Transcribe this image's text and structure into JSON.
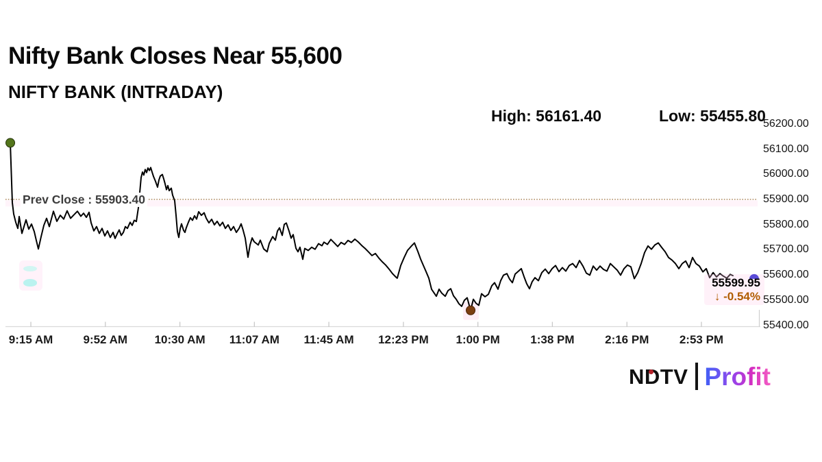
{
  "header": {
    "title": "Nifty Bank Closes Near 55,600",
    "subtitle": "NIFTY BANK (INTRADAY)",
    "high_label": "High:",
    "high_value": "56161.40",
    "low_label": "Low:",
    "low_value": "55455.80"
  },
  "annotations": {
    "prev_close_label": "Prev Close :",
    "prev_close_value": "55903.40",
    "last_price": "55599.95",
    "change_arrow": "↓",
    "change_percent": "-0.54%"
  },
  "branding": {
    "ndtv": "NDTV",
    "divider_bar": "",
    "profit": "Profit"
  },
  "chart_data": {
    "type": "line",
    "title": "Nifty Bank Closes Near 55,600",
    "subtitle": "NIFTY BANK (INTRADAY)",
    "high": 56161.4,
    "low": 55455.8,
    "prev_close": 55903.4,
    "last": 55599.95,
    "change_pct": -0.54,
    "grid": false,
    "legend": "none",
    "colors": {
      "line": "#000000",
      "prev_close_line": "#b3916a",
      "change_text": "#b05c00",
      "open_marker": "#53751b",
      "low_marker": "#7c3e10",
      "close_marker": "#1b1bd0"
    },
    "y_axis": {
      "min": 55400,
      "max": 56200,
      "ticks": [
        {
          "value": 56200,
          "label": "56200.00"
        },
        {
          "value": 56100,
          "label": "56100.00"
        },
        {
          "value": 56000,
          "label": "56000.00"
        },
        {
          "value": 55900,
          "label": "55900.00"
        },
        {
          "value": 55800,
          "label": "55800.00"
        },
        {
          "value": 55700,
          "label": "55700.00"
        },
        {
          "value": 55600,
          "label": "55600.00"
        },
        {
          "value": 55500,
          "label": "55500.00"
        },
        {
          "value": 55400,
          "label": "55400.00"
        }
      ]
    },
    "x_axis": {
      "ticks": [
        {
          "f": 0.032,
          "label": "9:15 AM"
        },
        {
          "f": 0.1313,
          "label": "9:52 AM"
        },
        {
          "f": 0.2307,
          "label": "10:30 AM"
        },
        {
          "f": 0.33,
          "label": "11:07 AM"
        },
        {
          "f": 0.4293,
          "label": "11:45 AM"
        },
        {
          "f": 0.5287,
          "label": "12:23 PM"
        },
        {
          "f": 0.628,
          "label": "1:00 PM"
        },
        {
          "f": 0.7273,
          "label": "1:38 PM"
        },
        {
          "f": 0.8267,
          "label": "2:16 PM"
        },
        {
          "f": 0.926,
          "label": "2:53 PM"
        }
      ]
    },
    "markers": {
      "open": {
        "f": 0.0046,
        "p": 56128,
        "color": "#53751b"
      },
      "low": {
        "f": 0.6183,
        "p": 55462,
        "color": "#7c3e10"
      },
      "close": {
        "f": 0.9963,
        "p": 55598,
        "color": "#1b1bd0"
      }
    },
    "series": [
      {
        "name": "NIFTY BANK",
        "points": [
          [
            0.0046,
            56128
          ],
          [
            0.0073,
            55890
          ],
          [
            0.0091,
            55845
          ],
          [
            0.0119,
            55812
          ],
          [
            0.0146,
            55788
          ],
          [
            0.0164,
            55835
          ],
          [
            0.0201,
            55768
          ],
          [
            0.0228,
            55795
          ],
          [
            0.0256,
            55822
          ],
          [
            0.0292,
            55785
          ],
          [
            0.0329,
            55805
          ],
          [
            0.0365,
            55775
          ],
          [
            0.0393,
            55740
          ],
          [
            0.042,
            55706
          ],
          [
            0.0457,
            55755
          ],
          [
            0.0493,
            55800
          ],
          [
            0.053,
            55828
          ],
          [
            0.0566,
            55795
          ],
          [
            0.0621,
            55856
          ],
          [
            0.0667,
            55816
          ],
          [
            0.0712,
            55840
          ],
          [
            0.0758,
            55825
          ],
          [
            0.0804,
            55858
          ],
          [
            0.0849,
            55828
          ],
          [
            0.0895,
            55842
          ],
          [
            0.0941,
            55856
          ],
          [
            0.0986,
            55836
          ],
          [
            0.1023,
            55848
          ],
          [
            0.106,
            55832
          ],
          [
            0.1096,
            55852
          ],
          [
            0.1123,
            55810
          ],
          [
            0.116,
            55778
          ],
          [
            0.1196,
            55795
          ],
          [
            0.1233,
            55768
          ],
          [
            0.1269,
            55788
          ],
          [
            0.1306,
            55758
          ],
          [
            0.1342,
            55778
          ],
          [
            0.1379,
            55752
          ],
          [
            0.1416,
            55772
          ],
          [
            0.1443,
            55748
          ],
          [
            0.147,
            55766
          ],
          [
            0.1498,
            55782
          ],
          [
            0.1525,
            55760
          ],
          [
            0.1553,
            55772
          ],
          [
            0.158,
            55795
          ],
          [
            0.1607,
            55788
          ],
          [
            0.1644,
            55812
          ],
          [
            0.1671,
            55800
          ],
          [
            0.1699,
            55820
          ],
          [
            0.1726,
            55815
          ],
          [
            0.1753,
            55870
          ],
          [
            0.1772,
            55930
          ],
          [
            0.179,
            55990
          ],
          [
            0.1808,
            56012
          ],
          [
            0.1826,
            56000
          ],
          [
            0.1845,
            56022
          ],
          [
            0.1863,
            56010
          ],
          [
            0.1881,
            56028
          ],
          [
            0.19,
            56018
          ],
          [
            0.1918,
            56030
          ],
          [
            0.1936,
            56012
          ],
          [
            0.1954,
            55995
          ],
          [
            0.1982,
            55975
          ],
          [
            0.2009,
            55952
          ],
          [
            0.2027,
            55980
          ],
          [
            0.2046,
            55996
          ],
          [
            0.2073,
            56002
          ],
          [
            0.2091,
            55985
          ],
          [
            0.211,
            55965
          ],
          [
            0.2128,
            55942
          ],
          [
            0.2146,
            55958
          ],
          [
            0.2164,
            55938
          ],
          [
            0.2192,
            55948
          ],
          [
            0.221,
            55920
          ],
          [
            0.2237,
            55898
          ],
          [
            0.2256,
            55840
          ],
          [
            0.2274,
            55775
          ],
          [
            0.2292,
            55752
          ],
          [
            0.2311,
            55788
          ],
          [
            0.2329,
            55806
          ],
          [
            0.2356,
            55780
          ],
          [
            0.2374,
            55772
          ],
          [
            0.2392,
            55790
          ],
          [
            0.242,
            55812
          ],
          [
            0.2447,
            55830
          ],
          [
            0.2475,
            55820
          ],
          [
            0.2502,
            55838
          ],
          [
            0.253,
            55825
          ],
          [
            0.2557,
            55854
          ],
          [
            0.2594,
            55840
          ],
          [
            0.263,
            55850
          ],
          [
            0.2658,
            55828
          ],
          [
            0.2694,
            55810
          ],
          [
            0.2731,
            55824
          ],
          [
            0.2767,
            55802
          ],
          [
            0.2804,
            55816
          ],
          [
            0.284,
            55798
          ],
          [
            0.2877,
            55812
          ],
          [
            0.2913,
            55788
          ],
          [
            0.295,
            55802
          ],
          [
            0.2986,
            55780
          ],
          [
            0.3023,
            55795
          ],
          [
            0.3059,
            55772
          ],
          [
            0.3096,
            55788
          ],
          [
            0.3123,
            55806
          ],
          [
            0.3151,
            55780
          ],
          [
            0.3178,
            55749
          ],
          [
            0.3215,
            55673
          ],
          [
            0.3242,
            55722
          ],
          [
            0.327,
            55750
          ],
          [
            0.3297,
            55735
          ],
          [
            0.3352,
            55722
          ],
          [
            0.3379,
            55741
          ],
          [
            0.3425,
            55706
          ],
          [
            0.347,
            55695
          ],
          [
            0.3498,
            55728
          ],
          [
            0.3543,
            55755
          ],
          [
            0.358,
            55741
          ],
          [
            0.3607,
            55777
          ],
          [
            0.3635,
            55790
          ],
          [
            0.3671,
            55760
          ],
          [
            0.3699,
            55804
          ],
          [
            0.3726,
            55809
          ],
          [
            0.3763,
            55777
          ],
          [
            0.379,
            55749
          ],
          [
            0.3817,
            55763
          ],
          [
            0.3854,
            55709
          ],
          [
            0.3881,
            55695
          ],
          [
            0.3908,
            55713
          ],
          [
            0.3945,
            55665
          ],
          [
            0.3972,
            55708
          ],
          [
            0.4018,
            55700
          ],
          [
            0.4064,
            55713
          ],
          [
            0.411,
            55705
          ],
          [
            0.4155,
            55727
          ],
          [
            0.4201,
            55719
          ],
          [
            0.4228,
            55733
          ],
          [
            0.4274,
            55724
          ],
          [
            0.432,
            55744
          ],
          [
            0.4366,
            55730
          ],
          [
            0.4411,
            55716
          ],
          [
            0.4457,
            55732
          ],
          [
            0.4502,
            55724
          ],
          [
            0.4548,
            55740
          ],
          [
            0.4594,
            55732
          ],
          [
            0.4639,
            55745
          ],
          [
            0.4685,
            55734
          ],
          [
            0.4731,
            55720
          ],
          [
            0.4776,
            55708
          ],
          [
            0.4822,
            55694
          ],
          [
            0.4868,
            55680
          ],
          [
            0.4913,
            55688
          ],
          [
            0.4959,
            55670
          ],
          [
            0.5005,
            55655
          ],
          [
            0.505,
            55642
          ],
          [
            0.5096,
            55626
          ],
          [
            0.5142,
            55608
          ],
          [
            0.5187,
            55594
          ],
          [
            0.5205,
            55590
          ],
          [
            0.5251,
            55640
          ],
          [
            0.5297,
            55672
          ],
          [
            0.5342,
            55700
          ],
          [
            0.5388,
            55716
          ],
          [
            0.5434,
            55730
          ],
          [
            0.5479,
            55696
          ],
          [
            0.5516,
            55666
          ],
          [
            0.5553,
            55640
          ],
          [
            0.5589,
            55616
          ],
          [
            0.5626,
            55590
          ],
          [
            0.5662,
            55546
          ],
          [
            0.5699,
            55530
          ],
          [
            0.5726,
            55518
          ],
          [
            0.5763,
            55546
          ],
          [
            0.5799,
            55530
          ],
          [
            0.5845,
            55518
          ],
          [
            0.5881,
            55540
          ],
          [
            0.5918,
            55548
          ],
          [
            0.5954,
            55520
          ],
          [
            0.5991,
            55506
          ],
          [
            0.6027,
            55488
          ],
          [
            0.6064,
            55478
          ],
          [
            0.61,
            55502
          ],
          [
            0.6137,
            55512
          ],
          [
            0.6183,
            55462
          ],
          [
            0.6219,
            55506
          ],
          [
            0.6256,
            55490
          ],
          [
            0.6292,
            55482
          ],
          [
            0.6329,
            55528
          ],
          [
            0.6374,
            55516
          ],
          [
            0.642,
            55526
          ],
          [
            0.6466,
            55560
          ],
          [
            0.6502,
            55572
          ],
          [
            0.6548,
            55546
          ],
          [
            0.6584,
            55580
          ],
          [
            0.6621,
            55602
          ],
          [
            0.6667,
            55608
          ],
          [
            0.6703,
            55586
          ],
          [
            0.674,
            55572
          ],
          [
            0.6776,
            55606
          ],
          [
            0.6822,
            55618
          ],
          [
            0.6858,
            55628
          ],
          [
            0.6895,
            55596
          ],
          [
            0.6931,
            55568
          ],
          [
            0.6968,
            55548
          ],
          [
            0.7004,
            55576
          ],
          [
            0.7041,
            55592
          ],
          [
            0.7087,
            55580
          ],
          [
            0.7132,
            55612
          ],
          [
            0.7178,
            55626
          ],
          [
            0.7224,
            55608
          ],
          [
            0.7269,
            55628
          ],
          [
            0.7315,
            55640
          ],
          [
            0.7361,
            55616
          ],
          [
            0.7406,
            55632
          ],
          [
            0.7452,
            55618
          ],
          [
            0.7498,
            55640
          ],
          [
            0.7543,
            55648
          ],
          [
            0.7589,
            55632
          ],
          [
            0.7635,
            55660
          ],
          [
            0.768,
            55638
          ],
          [
            0.7726,
            55610
          ],
          [
            0.7772,
            55602
          ],
          [
            0.7817,
            55638
          ],
          [
            0.7863,
            55622
          ],
          [
            0.7909,
            55638
          ],
          [
            0.7954,
            55625
          ],
          [
            0.8,
            55618
          ],
          [
            0.8046,
            55648
          ],
          [
            0.8091,
            55635
          ],
          [
            0.8137,
            55622
          ],
          [
            0.8183,
            55602
          ],
          [
            0.8228,
            55628
          ],
          [
            0.8274,
            55642
          ],
          [
            0.832,
            55635
          ],
          [
            0.8365,
            55588
          ],
          [
            0.8411,
            55612
          ],
          [
            0.8457,
            55648
          ],
          [
            0.8502,
            55692
          ],
          [
            0.8548,
            55718
          ],
          [
            0.8594,
            55705
          ],
          [
            0.8639,
            55722
          ],
          [
            0.8685,
            55730
          ],
          [
            0.8731,
            55712
          ],
          [
            0.8776,
            55695
          ],
          [
            0.8822,
            55672
          ],
          [
            0.8868,
            55662
          ],
          [
            0.8913,
            55648
          ],
          [
            0.8959,
            55628
          ],
          [
            0.9005,
            55648
          ],
          [
            0.905,
            55658
          ],
          [
            0.9096,
            55632
          ],
          [
            0.9142,
            55672
          ],
          [
            0.9187,
            55648
          ],
          [
            0.9233,
            55638
          ],
          [
            0.9279,
            55615
          ],
          [
            0.9324,
            55628
          ],
          [
            0.937,
            55592
          ],
          [
            0.9416,
            55612
          ],
          [
            0.9461,
            55595
          ],
          [
            0.9507,
            55608
          ],
          [
            0.9553,
            55598
          ],
          [
            0.9598,
            55590
          ],
          [
            0.9644,
            55605
          ],
          [
            0.968,
            55600
          ]
        ]
      }
    ]
  }
}
